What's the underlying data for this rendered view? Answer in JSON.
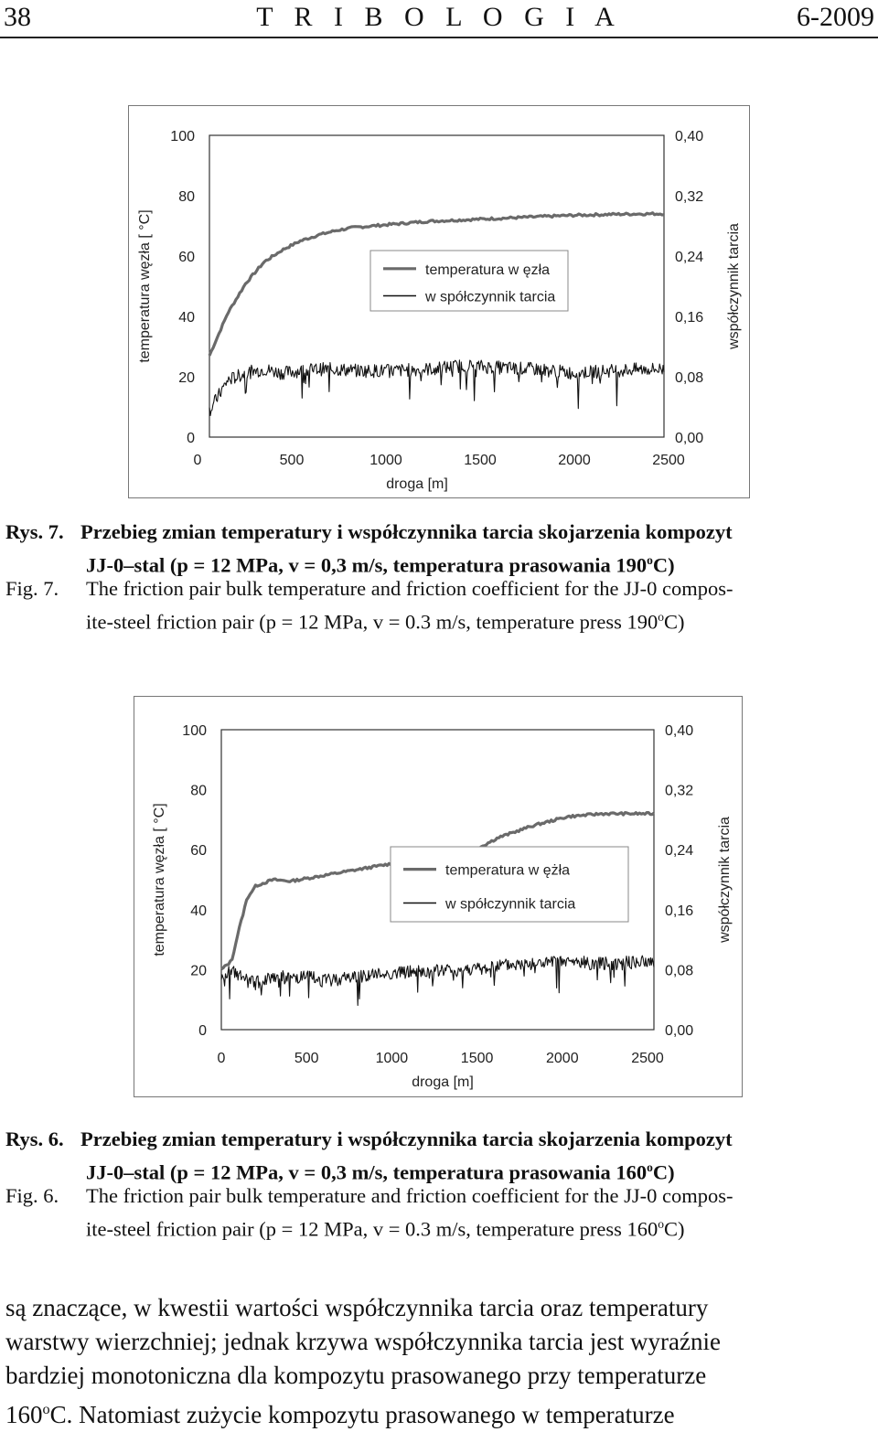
{
  "header": {
    "page_number": "38",
    "journal": "T R I B O L O G I A",
    "issue": "6-2009"
  },
  "chart_data": [
    {
      "type": "line",
      "x": [
        0,
        100,
        200,
        300,
        400,
        500,
        600,
        700,
        800,
        1000,
        1200,
        1400,
        1600,
        1800,
        2000,
        2200,
        2400,
        2500
      ],
      "series": [
        {
          "name": "temperatura w ęzła",
          "axis": "left",
          "values": [
            27,
            41,
            51,
            58,
            62,
            65,
            67,
            68.5,
            69.5,
            70.5,
            71.5,
            72,
            72.5,
            73,
            73.5,
            73.8,
            74,
            74
          ]
        },
        {
          "name": "w spółczynnik tarcia",
          "axis": "right",
          "values": [
            0.035,
            0.075,
            0.085,
            0.09,
            0.085,
            0.088,
            0.09,
            0.09,
            0.088,
            0.088,
            0.09,
            0.095,
            0.092,
            0.09,
            0.085,
            0.088,
            0.09,
            0.09
          ]
        }
      ],
      "xlabel": "droga [m]",
      "ylabel": "temperatura węzła [ °C]",
      "y2label": "współczynnik tarcia",
      "xlim": [
        0,
        2500
      ],
      "ylim": [
        0,
        100
      ],
      "y2lim": [
        0,
        0.4
      ],
      "xticks": [
        "0",
        "500",
        "1000",
        "1500",
        "2000",
        "2500"
      ],
      "yticks": [
        "0",
        "20",
        "40",
        "60",
        "80",
        "100"
      ],
      "y2ticks": [
        "0,00",
        "0,08",
        "0,16",
        "0,24",
        "0,32",
        "0,40"
      ],
      "legend": "center-right"
    },
    {
      "type": "line",
      "x": [
        0,
        60,
        100,
        150,
        200,
        300,
        400,
        500,
        600,
        800,
        1000,
        1100,
        1200,
        1250,
        1300,
        1350,
        1400,
        1450,
        1500,
        1600,
        1800,
        2000,
        2200,
        2400,
        2500
      ],
      "series": [
        {
          "name": "temperatura w ężła",
          "axis": "left",
          "values": [
            20,
            23,
            33,
            44,
            48,
            50,
            49.5,
            50.5,
            51.5,
            53.5,
            55.5,
            57,
            58.5,
            58,
            57,
            55,
            57,
            59,
            61,
            64,
            68,
            71,
            72,
            72,
            72
          ]
        },
        {
          "name": "w spółczynnik tarcia",
          "axis": "right",
          "values": [
            0.075,
            0.078,
            0.072,
            0.065,
            0.062,
            0.072,
            0.068,
            0.07,
            0.065,
            0.072,
            0.075,
            0.078,
            0.075,
            0.078,
            0.08,
            0.078,
            0.08,
            0.082,
            0.08,
            0.085,
            0.088,
            0.09,
            0.088,
            0.09,
            0.09
          ]
        }
      ],
      "xlabel": "droga [m]",
      "ylabel": "temperatura węzła [ °C]",
      "y2label": "współczynnik tarcia",
      "xlim": [
        0,
        2500
      ],
      "ylim": [
        0,
        100
      ],
      "y2lim": [
        0,
        0.4
      ],
      "xticks": [
        "0",
        "500",
        "1000",
        "1500",
        "2000",
        "2500"
      ],
      "yticks": [
        "0",
        "20",
        "40",
        "60",
        "80",
        "100"
      ],
      "y2ticks": [
        "0,00",
        "0,08",
        "0,16",
        "0,24",
        "0,32",
        "0,40"
      ],
      "legend": "center-right"
    }
  ],
  "captions": {
    "fig7_pl_label": "Rys. 7.",
    "fig7_pl_line1": "Przebieg zmian temperatury i współczynnika tarcia skojarzenia kompozyt",
    "fig7_pl_line2": "JJ-0–stal (p = 12 MPa, v = 0,3 m/s, temperatura prasowania 190",
    "fig7_pl_sup": "o",
    "fig7_pl_end": "C)",
    "fig7_en_label": "Fig. 7.",
    "fig7_en_line1": "The friction pair bulk temperature and friction coefficient for the JJ-0 compos-",
    "fig7_en_line2": "ite-steel friction pair (p = 12 MPa, v = 0.3 m/s, temperature press 190",
    "fig7_en_sup": "o",
    "fig7_en_end": "C)",
    "fig6_pl_label": "Rys. 6.",
    "fig6_pl_line1": "Przebieg zmian temperatury i współczynnika tarcia skojarzenia kompozyt",
    "fig6_pl_line2": "JJ-0–stal (p = 12 MPa, v = 0,3 m/s, temperatura prasowania 160",
    "fig6_pl_sup": "o",
    "fig6_pl_end": "C)",
    "fig6_en_label": "Fig. 6.",
    "fig6_en_line1": "The friction pair bulk temperature and friction coefficient for the JJ-0 compos-",
    "fig6_en_line2": "ite-steel friction pair (p = 12 MPa, v = 0.3 m/s, temperature press 160",
    "fig6_en_sup": "o",
    "fig6_en_end": "C)"
  },
  "body": {
    "line1": "są znaczące, w kwestii wartości współczynnika tarcia oraz temperatury",
    "line2": "warstwy wierzchniej; jednak krzywa współczynnika tarcia jest wyraźnie",
    "line3": "bardziej monotoniczna dla kompozytu prasowanego przy temperaturze",
    "line4_pre": "160",
    "line4_sup": "o",
    "line4_post": "C. Natomiast zużycie kompozytu prasowanego w temperaturze"
  }
}
